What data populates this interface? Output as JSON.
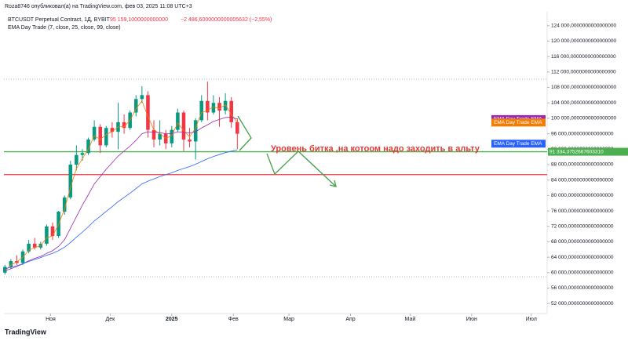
{
  "header": {
    "author": "Roza8746 опубликовал(а) на TradingView.com, фев 03, 2025 11:08 UTC+3",
    "symbol": "BTCUSDT Perpetual Contract, 1Д, BYBIT",
    "price": "95 159,1000000000000",
    "change": "−2 486,6000000000005632 (−2,55%)",
    "indicator": "EMA Day Trade (7, close, 25, close, 99, close)"
  },
  "footer": {
    "brand": "TradingView"
  },
  "chart_data": {
    "type": "candlestick",
    "up_color": "#089981",
    "down_color": "#f23645",
    "x": [
      -23,
      -20,
      -17,
      -14,
      -11,
      -8,
      -5,
      -2,
      1,
      4,
      7,
      10,
      13,
      16,
      19,
      22,
      25,
      28,
      31,
      34,
      37,
      40,
      43,
      46,
      49,
      52,
      55,
      58,
      61,
      64,
      67,
      70,
      73,
      76,
      79,
      82,
      85,
      88,
      91,
      94
    ],
    "open": [
      60000,
      61500,
      63000,
      62500,
      65500,
      67500,
      66500,
      67500,
      72000,
      69500,
      75800,
      79500,
      88000,
      90500,
      91000,
      94500,
      97800,
      93000,
      97500,
      96500,
      99000,
      97500,
      101500,
      105000,
      106000,
      97000,
      94500,
      96000,
      93500,
      97000,
      101500,
      94500,
      94000,
      99500,
      104500,
      101500,
      104000,
      102000,
      104500,
      99000
    ],
    "high": [
      62000,
      63500,
      64500,
      66000,
      68500,
      69000,
      68000,
      72500,
      73000,
      76000,
      80000,
      89000,
      93000,
      92000,
      95000,
      99500,
      98500,
      98000,
      99000,
      104000,
      101000,
      102000,
      106000,
      108300,
      107000,
      99500,
      99500,
      97000,
      98000,
      102500,
      102000,
      97500,
      100000,
      106000,
      109500,
      106000,
      105500,
      106500,
      105500,
      100000
    ],
    "low": [
      59500,
      61000,
      62000,
      62000,
      65000,
      66000,
      66000,
      67000,
      68500,
      69000,
      75000,
      79000,
      86500,
      89000,
      90500,
      94000,
      91000,
      92500,
      95000,
      92000,
      96000,
      97000,
      100500,
      104000,
      95000,
      92500,
      93000,
      92000,
      92500,
      96500,
      91500,
      92500,
      89300,
      99000,
      99500,
      101000,
      97800,
      101000,
      97500,
      92000
    ],
    "close": [
      61500,
      63000,
      62500,
      65500,
      67500,
      66500,
      67500,
      72000,
      69500,
      75800,
      79500,
      88000,
      90500,
      91000,
      94500,
      97800,
      93000,
      97500,
      96500,
      99000,
      97500,
      101500,
      105000,
      106000,
      97000,
      94500,
      96000,
      93500,
      97000,
      101500,
      94500,
      94000,
      99500,
      104500,
      101500,
      104000,
      102000,
      104500,
      99000,
      96000
    ],
    "series": [
      {
        "name": "EMA Day Trade EMA",
        "color": "#f57c00",
        "values": [
          60500,
          62000,
          62800,
          64000,
          65800,
          66500,
          67000,
          69000,
          69500,
          72500,
          76500,
          82000,
          87000,
          89500,
          92000,
          95500,
          94500,
          95800,
          96500,
          97800,
          97800,
          99500,
          102500,
          104500,
          100500,
          97000,
          96000,
          94800,
          95500,
          98800,
          96800,
          95200,
          97500,
          101500,
          102000,
          103000,
          102500,
          103500,
          101000,
          98900
        ]
      },
      {
        "name": "EMA Day Trade EMA",
        "color": "#9c27b0",
        "values": [
          60500,
          61000,
          61600,
          62300,
          63100,
          63700,
          64200,
          65000,
          65700,
          66800,
          68500,
          71500,
          74500,
          77500,
          80200,
          83000,
          84900,
          86800,
          88500,
          90200,
          91500,
          92800,
          94300,
          96000,
          96500,
          96400,
          96300,
          96000,
          96000,
          96500,
          96400,
          96200,
          96500,
          97500,
          98300,
          99200,
          99700,
          100200,
          100300,
          99800
        ]
      },
      {
        "name": "EMA Day Trade EMA",
        "color": "#2962ff",
        "values": [
          61000,
          61400,
          61800,
          62300,
          62900,
          63400,
          63900,
          64500,
          65000,
          65700,
          66600,
          67800,
          69200,
          70500,
          71900,
          73400,
          74600,
          75900,
          77100,
          78400,
          79500,
          80600,
          81800,
          83000,
          83700,
          84300,
          84900,
          85400,
          85900,
          86500,
          87000,
          87500,
          88100,
          88800,
          89500,
          90100,
          90600,
          91100,
          91500,
          91800
        ]
      }
    ],
    "hlines": [
      {
        "value": 91334,
        "label": "91 334,3752667603310",
        "color": "#4caf50"
      },
      {
        "value": 85400,
        "color": "#f23645"
      }
    ],
    "annotation": "Уровень битка ,на котоом надо заходить в альту",
    "xlim": [
      -23.5,
      250
    ],
    "xticks": [
      {
        "value": 0,
        "label": "Ноя"
      },
      {
        "value": 30,
        "label": "Дек"
      },
      {
        "value": 61,
        "label": "2025"
      },
      {
        "value": 92,
        "label": "Фев"
      },
      {
        "value": 120,
        "label": "Мар"
      },
      {
        "value": 151,
        "label": "Апр"
      },
      {
        "value": 181,
        "label": "Май"
      },
      {
        "value": 212,
        "label": "Июн"
      },
      {
        "value": 242,
        "label": "Июл"
      }
    ],
    "ylim": [
      49400,
      127000
    ],
    "yticks": [
      {
        "value": 124000,
        "label": "124 000,0000000000000000"
      },
      {
        "value": 120000,
        "label": "120 000,0000000000000000"
      },
      {
        "value": 116000,
        "label": "116 000,0000000000000000"
      },
      {
        "value": 112000,
        "label": "112 000,0000000000000000"
      },
      {
        "value": 108000,
        "label": "108 000,0000000000000000"
      },
      {
        "value": 104000,
        "label": "104 000,0000000000000000"
      },
      {
        "value": 100000,
        "label": "100 000,0000000000000000"
      },
      {
        "value": 96000,
        "label": "96 000,0000000000000000"
      },
      {
        "value": 92000,
        "label": "92 000,0000000000000000"
      },
      {
        "value": 88000,
        "label": "88 000,0000000000000000"
      },
      {
        "value": 84000,
        "label": "84 000,0000000000000000"
      },
      {
        "value": 80000,
        "label": "80 000,0000000000000000"
      },
      {
        "value": 76000,
        "label": "76 000,0000000000000000"
      },
      {
        "value": 72000,
        "label": "72 000,0000000000000000"
      },
      {
        "value": 68000,
        "label": "68 000,0000000000000000"
      },
      {
        "value": 64000,
        "label": "64 000,0000000000000000"
      },
      {
        "value": 60000,
        "label": "60 000,0000000000000000"
      },
      {
        "value": 56000,
        "label": "56 000,0000000000000000"
      },
      {
        "value": 52000,
        "label": "52 000,0000000000000000"
      }
    ]
  }
}
